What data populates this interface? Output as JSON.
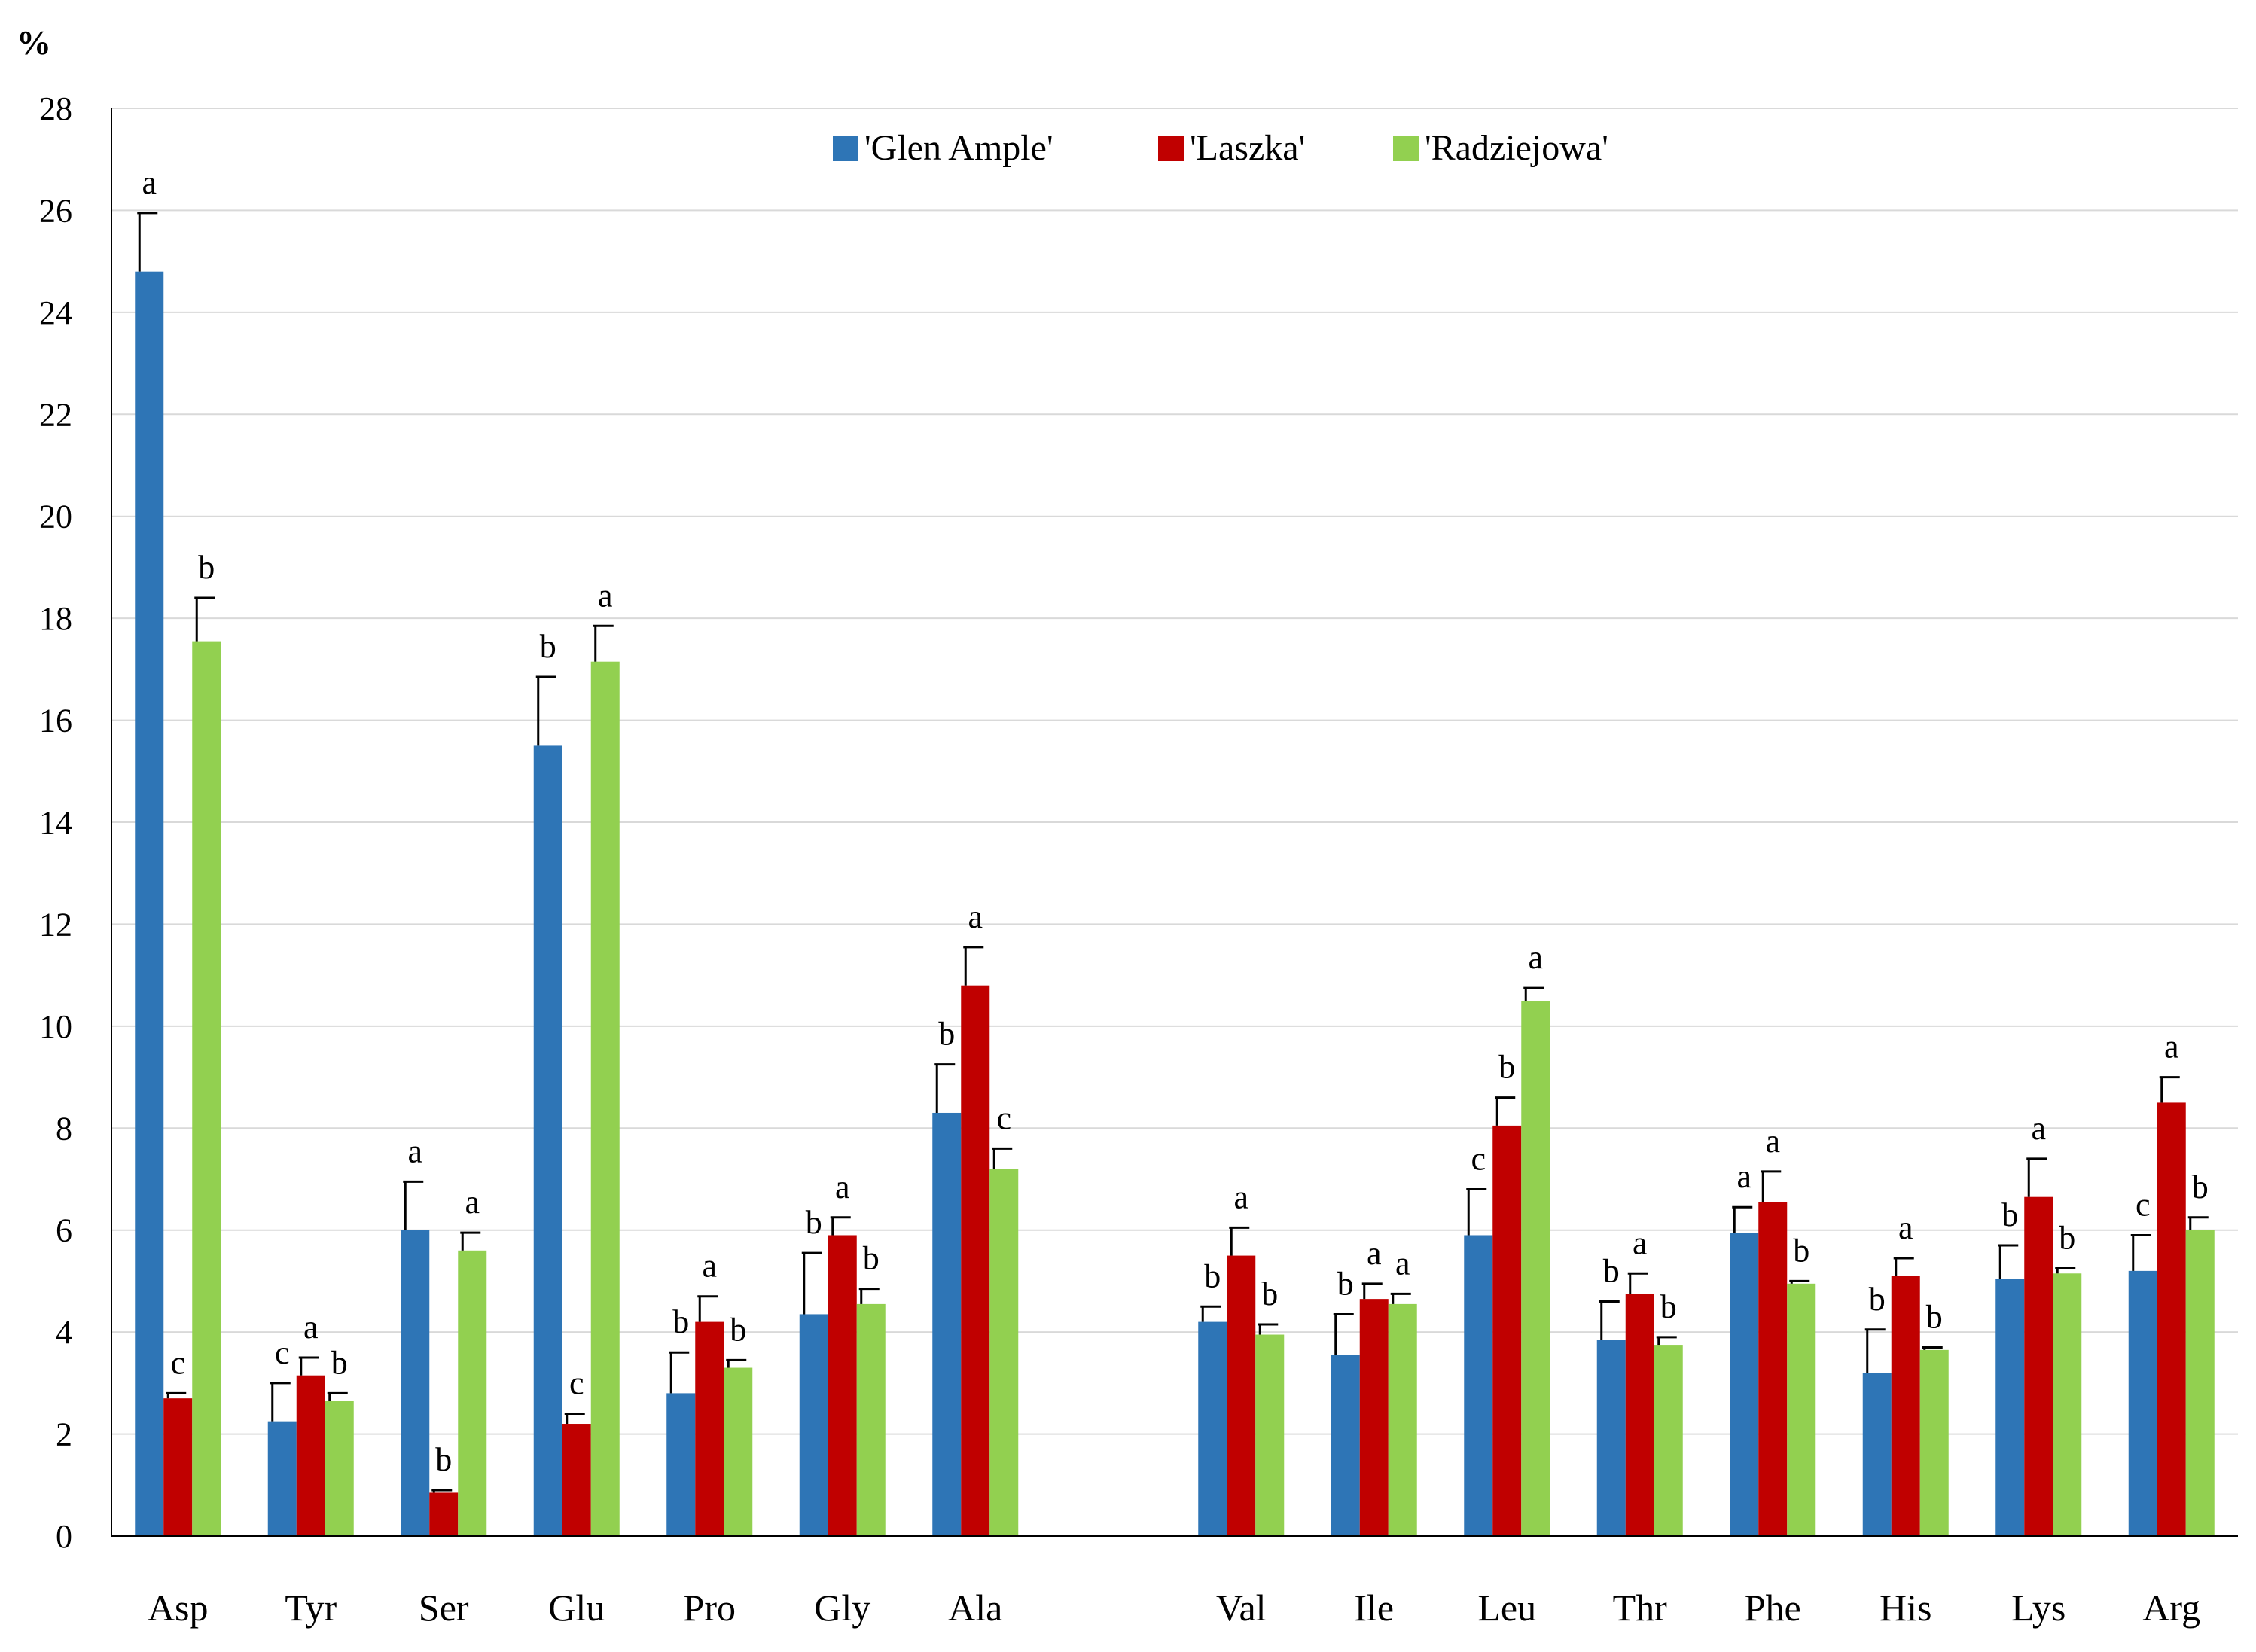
{
  "chart_data": {
    "type": "bar",
    "title": "",
    "ylabel": "%",
    "xlabel": "",
    "ylim": [
      0,
      28
    ],
    "yticks": [
      0,
      2,
      4,
      6,
      8,
      10,
      12,
      14,
      16,
      18,
      20,
      22,
      24,
      26,
      28
    ],
    "grid": true,
    "legend_position": "top-center",
    "categories": [
      "Asp",
      "Tyr",
      "Ser",
      "Glu",
      "Pro",
      "Gly",
      "Ala",
      "",
      "Val",
      "Ile",
      "Leu",
      "Thr",
      "Phe",
      "His",
      "Lys",
      "Arg"
    ],
    "series": [
      {
        "name": "'Glen Ample'",
        "color": "#2E75B6",
        "values": [
          24.8,
          2.25,
          6.0,
          15.5,
          2.8,
          4.35,
          8.3,
          null,
          4.2,
          3.55,
          5.9,
          3.85,
          5.95,
          3.2,
          5.05,
          5.2
        ],
        "errors": [
          1.15,
          0.75,
          0.95,
          1.35,
          0.8,
          1.2,
          0.95,
          null,
          0.3,
          0.8,
          0.9,
          0.75,
          0.5,
          0.85,
          0.65,
          0.7
        ],
        "letters": [
          "a",
          "c",
          "a",
          "b",
          "b",
          "b",
          "b",
          null,
          "b",
          "b",
          "c",
          "b",
          "a",
          "b",
          "b",
          "c"
        ]
      },
      {
        "name": "'Laszka'",
        "color": "#C00000",
        "values": [
          2.7,
          3.15,
          0.85,
          2.2,
          4.2,
          5.9,
          10.8,
          null,
          5.5,
          4.65,
          8.05,
          4.75,
          6.55,
          5.1,
          6.65,
          8.5
        ],
        "errors": [
          0.1,
          0.35,
          0.05,
          0.2,
          0.5,
          0.35,
          0.75,
          null,
          0.55,
          0.3,
          0.55,
          0.4,
          0.6,
          0.35,
          0.75,
          0.5
        ],
        "letters": [
          "c",
          "a",
          "b",
          "c",
          "a",
          "a",
          "a",
          null,
          "a",
          "a",
          "b",
          "a",
          "a",
          "a",
          "a",
          "a"
        ]
      },
      {
        "name": "'Radziejowa'",
        "color": "#92D050",
        "values": [
          17.55,
          2.65,
          5.6,
          17.15,
          3.3,
          4.55,
          7.2,
          null,
          3.95,
          4.55,
          10.5,
          3.75,
          4.95,
          3.65,
          5.15,
          6.0
        ],
        "errors": [
          0.85,
          0.15,
          0.35,
          0.7,
          0.15,
          0.3,
          0.4,
          null,
          0.2,
          0.2,
          0.25,
          0.15,
          0.05,
          0.05,
          0.1,
          0.25
        ],
        "letters": [
          "b",
          "b",
          "a",
          "a",
          "b",
          "b",
          "c",
          null,
          "b",
          "a",
          "a",
          "b",
          "b",
          "b",
          "b",
          "b"
        ]
      }
    ]
  }
}
